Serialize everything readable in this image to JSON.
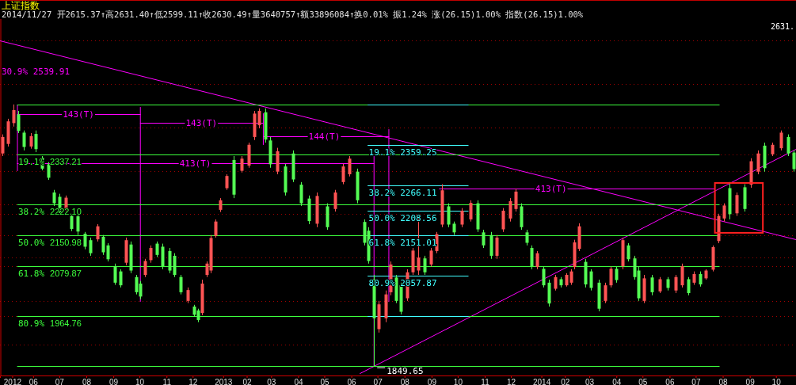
{
  "chart_data": {
    "type": "candlestick",
    "title": "上证指数",
    "subtitle": "2014/11/27 开2615.37↑高2631.40↑低2599.11↑收2630.49↑量3640757↑额33896084↑换0.01% 振1.24% 涨(26.15)1.00% 指数(26.15)1.00%",
    "x": [
      "2012-05-04",
      "2012-05-10",
      "2012-05-16",
      "2012-05-22",
      "2012-05-28",
      "2012-06-05",
      "2012-06-11",
      "2012-06-18",
      "2012-06-25",
      "2012-07-02",
      "2012-07-08",
      "2012-07-15",
      "2012-07-22",
      "2012-07-29",
      "2012-08-06",
      "2012-08-13",
      "2012-08-21",
      "2012-08-27",
      "2012-09-02",
      "2012-09-10",
      "2012-09-16",
      "2012-09-22",
      "2012-09-28",
      "2012-10-04",
      "2012-10-09",
      "2012-10-14",
      "2012-10-21",
      "2012-10-28",
      "2012-11-03",
      "2012-11-11",
      "2012-11-17",
      "2012-11-24",
      "2012-12-02",
      "2012-12-10",
      "2012-12-14",
      "2012-12-19",
      "2012-12-24",
      "2012-12-29",
      "2013-01-03",
      "2013-01-09",
      "2013-01-16",
      "2013-01-24",
      "2013-02-02",
      "2013-02-10",
      "2013-02-17",
      "2013-02-22",
      "2013-03-01",
      "2013-03-07",
      "2013-03-15",
      "2013-03-24",
      "2013-04-02",
      "2013-04-11",
      "2013-04-20",
      "2013-04-29",
      "2013-05-11",
      "2013-05-20",
      "2013-05-29",
      "2013-06-06",
      "2013-06-15",
      "2013-06-23",
      "2013-06-27",
      "2013-07-04",
      "2013-07-09",
      "2013-07-17",
      "2013-07-23",
      "2013-07-29",
      "2013-08-04",
      "2013-08-11",
      "2013-08-17",
      "2013-08-24",
      "2013-08-31",
      "2013-09-07",
      "2013-09-14",
      "2013-09-20",
      "2013-09-27",
      "2013-10-04",
      "2013-10-13",
      "2013-10-23",
      "2013-10-31",
      "2013-11-06",
      "2013-11-15",
      "2013-11-22",
      "2013-11-29",
      "2013-12-07",
      "2013-12-13",
      "2013-12-20",
      "2013-12-26",
      "2014-01-01",
      "2014-01-07",
      "2014-01-14",
      "2014-01-21",
      "2014-01-28",
      "2014-02-03",
      "2014-02-10",
      "2014-02-15",
      "2014-02-19",
      "2014-02-24",
      "2014-03-03",
      "2014-03-10",
      "2014-03-19",
      "2014-03-26",
      "2014-04-01",
      "2014-04-08",
      "2014-04-15",
      "2014-04-21",
      "2014-04-29",
      "2014-05-03",
      "2014-05-10",
      "2014-05-19",
      "2014-05-28",
      "2014-06-06",
      "2014-06-15",
      "2014-06-22",
      "2014-06-29",
      "2014-07-06",
      "2014-07-13",
      "2014-07-19",
      "2014-07-28",
      "2014-08-03",
      "2014-08-09",
      "2014-08-16",
      "2014-08-24",
      "2014-09-02",
      "2014-09-09",
      "2014-09-17",
      "2014-09-25",
      "2014-10-04",
      "2014-10-14",
      "2014-10-22",
      "2014-10-28"
    ],
    "ohlc": [
      [
        2340,
        2384,
        2334,
        2378
      ],
      [
        2362,
        2420,
        2356,
        2414
      ],
      [
        2410,
        2453,
        2402,
        2440
      ],
      [
        2430,
        2438,
        2387,
        2392
      ],
      [
        2388,
        2393,
        2347,
        2355
      ],
      [
        2356,
        2387,
        2351,
        2380
      ],
      [
        2385,
        2393,
        2343,
        2350
      ],
      [
        2330,
        2334,
        2301,
        2305
      ],
      [
        2315,
        2320,
        2279,
        2284
      ],
      [
        2250,
        2256,
        2219,
        2225
      ],
      [
        2240,
        2247,
        2197,
        2203
      ],
      [
        2210,
        2243,
        2205,
        2238
      ],
      [
        2196,
        2201,
        2161,
        2166
      ],
      [
        2195,
        2201,
        2152,
        2160
      ],
      [
        2155,
        2159,
        2119,
        2125
      ],
      [
        2140,
        2146,
        2104,
        2110
      ],
      [
        2142,
        2177,
        2137,
        2172
      ],
      [
        2148,
        2152,
        2106,
        2112
      ],
      [
        2128,
        2133,
        2091,
        2096
      ],
      [
        2080,
        2086,
        2037,
        2042
      ],
      [
        2068,
        2073,
        2031,
        2036
      ],
      [
        2088,
        2146,
        2082,
        2140
      ],
      [
        2130,
        2137,
        2064,
        2070
      ],
      [
        2055,
        2060,
        2015,
        2020
      ],
      [
        2040,
        2046,
        2004,
        2010
      ],
      [
        2060,
        2097,
        2055,
        2092
      ],
      [
        2094,
        2128,
        2088,
        2122
      ],
      [
        2132,
        2137,
        2101,
        2106
      ],
      [
        2125,
        2132,
        2073,
        2080
      ],
      [
        2115,
        2122,
        2064,
        2070
      ],
      [
        2104,
        2110,
        2055,
        2060
      ],
      [
        2055,
        2060,
        2015,
        2020
      ],
      [
        2000,
        2031,
        1995,
        2025
      ],
      [
        1987,
        1991,
        1964,
        1968
      ],
      [
        1978,
        1982,
        1951,
        1956
      ],
      [
        1972,
        2049,
        1967,
        2040
      ],
      [
        2060,
        2091,
        2055,
        2086
      ],
      [
        2070,
        2152,
        2064,
        2145
      ],
      [
        2150,
        2188,
        2146,
        2183
      ],
      [
        2210,
        2237,
        2205,
        2232
      ],
      [
        2260,
        2292,
        2256,
        2288
      ],
      [
        2325,
        2334,
        2237,
        2245
      ],
      [
        2300,
        2334,
        2296,
        2328
      ],
      [
        2312,
        2365,
        2307,
        2360
      ],
      [
        2378,
        2438,
        2371,
        2432
      ],
      [
        2405,
        2444,
        2398,
        2438
      ],
      [
        2435,
        2444,
        2365,
        2372
      ],
      [
        2370,
        2378,
        2307,
        2315
      ],
      [
        2298,
        2353,
        2292,
        2345
      ],
      [
        2310,
        2316,
        2243,
        2250
      ],
      [
        2340,
        2347,
        2274,
        2280
      ],
      [
        2268,
        2274,
        2219,
        2225
      ],
      [
        2236,
        2243,
        2177,
        2184
      ],
      [
        2178,
        2250,
        2170,
        2242
      ],
      [
        2218,
        2225,
        2164,
        2170
      ],
      [
        2212,
        2256,
        2206,
        2250
      ],
      [
        2274,
        2316,
        2269,
        2310
      ],
      [
        2292,
        2334,
        2287,
        2328
      ],
      [
        2298,
        2305,
        2225,
        2232
      ],
      [
        2182,
        2188,
        2128,
        2134
      ],
      [
        2162,
        2170,
        2086,
        2092
      ],
      [
        2050,
        2060,
        1849.65,
        1960
      ],
      [
        1935,
        2000,
        1927,
        1992
      ],
      [
        1960,
        2024,
        1951,
        2015
      ],
      [
        2020,
        2091,
        2013,
        2084
      ],
      [
        2054,
        2060,
        1995,
        2000
      ],
      [
        2036,
        2042,
        1969,
        1975
      ],
      [
        2006,
        2073,
        2000,
        2066
      ],
      [
        2066,
        2122,
        2060,
        2116
      ],
      [
        2070,
        2196,
        2060,
        2100
      ],
      [
        2098,
        2104,
        2060,
        2066
      ],
      [
        2084,
        2122,
        2079,
        2116
      ],
      [
        2115,
        2159,
        2110,
        2154
      ],
      [
        2176,
        2269,
        2170,
        2255
      ],
      [
        2218,
        2225,
        2170,
        2176
      ],
      [
        2178,
        2183,
        2152,
        2158
      ],
      [
        2176,
        2214,
        2170,
        2208
      ],
      [
        2188,
        2232,
        2183,
        2226
      ],
      [
        2225,
        2232,
        2159,
        2165
      ],
      [
        2158,
        2164,
        2122,
        2128
      ],
      [
        2152,
        2159,
        2097,
        2104
      ],
      [
        2104,
        2152,
        2097,
        2146
      ],
      [
        2165,
        2214,
        2159,
        2208
      ],
      [
        2190,
        2237,
        2183,
        2230
      ],
      [
        2212,
        2259,
        2206,
        2252
      ],
      [
        2218,
        2225,
        2164,
        2170
      ],
      [
        2158,
        2164,
        2128,
        2134
      ],
      [
        2122,
        2128,
        2073,
        2080
      ],
      [
        2078,
        2115,
        2073,
        2110
      ],
      [
        2074,
        2079,
        2031,
        2036
      ],
      [
        2042,
        2049,
        1987,
        1994
      ],
      [
        2028,
        2060,
        2024,
        2055
      ],
      [
        2050,
        2055,
        2031,
        2036
      ],
      [
        2036,
        2064,
        2033,
        2060
      ],
      [
        2042,
        2073,
        2037,
        2068
      ],
      [
        2078,
        2141,
        2073,
        2135
      ],
      [
        2120,
        2179,
        2115,
        2172
      ],
      [
        2090,
        2097,
        2031,
        2038
      ],
      [
        2068,
        2073,
        2024,
        2030
      ],
      [
        2042,
        2049,
        1976,
        1982
      ],
      [
        2000,
        2042,
        1995,
        2036
      ],
      [
        2036,
        2079,
        2031,
        2074
      ],
      [
        2074,
        2079,
        2042,
        2048
      ],
      [
        2080,
        2146,
        2073,
        2140
      ],
      [
        2128,
        2133,
        2091,
        2096
      ],
      [
        2098,
        2104,
        2049,
        2055
      ],
      [
        2070,
        2079,
        2000,
        2006
      ],
      [
        2000,
        2060,
        1995,
        2052
      ],
      [
        2054,
        2060,
        2013,
        2020
      ],
      [
        2022,
        2055,
        2018,
        2050
      ],
      [
        2050,
        2055,
        2024,
        2030
      ],
      [
        2024,
        2060,
        2018,
        2055
      ],
      [
        2036,
        2086,
        2031,
        2080
      ],
      [
        2050,
        2055,
        2013,
        2018
      ],
      [
        2042,
        2068,
        2037,
        2062
      ],
      [
        2062,
        2068,
        2033,
        2038
      ],
      [
        2052,
        2073,
        2049,
        2070
      ],
      [
        2072,
        2128,
        2068,
        2124
      ],
      [
        2138,
        2201,
        2133,
        2196
      ],
      [
        2190,
        2225,
        2183,
        2220
      ],
      [
        2260,
        2274,
        2188,
        2200
      ],
      [
        2202,
        2250,
        2196,
        2244
      ],
      [
        2262,
        2269,
        2206,
        2212
      ],
      [
        2268,
        2329,
        2261,
        2322
      ],
      [
        2298,
        2347,
        2292,
        2340
      ],
      [
        2358,
        2365,
        2298,
        2306
      ],
      [
        2338,
        2365,
        2334,
        2360
      ],
      [
        2352,
        2393,
        2347,
        2388
      ],
      [
        2378,
        2384,
        2334,
        2340
      ],
      [
        2342,
        2347,
        2298,
        2304
      ]
    ],
    "series": [
      {
        "type": "line",
        "color": "#ff00ff",
        "x": [
          "2012-05-01",
          "2014-10-31"
        ],
        "values": [
          2601,
          2143
        ]
      },
      {
        "type": "line",
        "color": "#ff00ff",
        "x": [
          "2013-06-18",
          "2014-10-31"
        ],
        "values": [
          1833,
          2351
        ]
      },
      {
        "type": "line",
        "color": "#ff00ff",
        "x": [
          "2012-05-21",
          "2012-10-09"
        ],
        "values": [
          2430,
          2430
        ]
      },
      {
        "type": "line",
        "color": "#ff00ff",
        "x": [
          "2012-10-09",
          "2013-02-27"
        ],
        "values": [
          2410,
          2410
        ]
      },
      {
        "type": "line",
        "color": "#ff00ff",
        "x": [
          "2013-02-27",
          "2013-07-21"
        ],
        "values": [
          2379,
          2379
        ]
      },
      {
        "type": "line",
        "color": "#ff00ff",
        "x": [
          "2012-05-21",
          "2013-07-04"
        ],
        "values": [
          2318,
          2318
        ]
      },
      {
        "type": "line",
        "color": "#ff00ff",
        "x": [
          "2013-09-17",
          "2014-07-30"
        ],
        "values": [
          2259,
          2259
        ]
      },
      {
        "type": "line",
        "color": "#ff00ff",
        "x": [
          "2012-05-21",
          "2012-05-21"
        ],
        "values": [
          2453,
          2301
        ]
      },
      {
        "type": "line",
        "color": "#ff00ff",
        "x": [
          "2012-10-09",
          "2012-10-09"
        ],
        "values": [
          2447,
          2000
        ]
      },
      {
        "type": "line",
        "color": "#ff00ff",
        "x": [
          "2013-02-27",
          "2013-02-27"
        ],
        "values": [
          2433,
          2362
        ]
      },
      {
        "type": "line",
        "color": "#ff00ff",
        "x": [
          "2013-07-04",
          "2013-07-04"
        ],
        "values": [
          2334,
          1849.65
        ]
      },
      {
        "type": "line",
        "color": "#ff00ff",
        "x": [
          "2013-07-21",
          "2013-07-21"
        ],
        "values": [
          2396,
          2000
        ]
      },
      {
        "type": "line",
        "color": "#3cff3c",
        "x": [
          "2012-05-21",
          "2014-08-04"
        ],
        "values": [
          2452,
          2452
        ]
      },
      {
        "type": "line",
        "color": "#3cff3c",
        "x": [
          "2012-05-21",
          "2014-08-04"
        ],
        "values": [
          2337.21,
          2337.21
        ]
      },
      {
        "type": "line",
        "color": "#3cff3c",
        "x": [
          "2012-05-21",
          "2014-08-04"
        ],
        "values": [
          2222.1,
          2222.1
        ]
      },
      {
        "type": "line",
        "color": "#3cff3c",
        "x": [
          "2012-05-21",
          "2014-08-04"
        ],
        "values": [
          2150.98,
          2150.98
        ]
      },
      {
        "type": "line",
        "color": "#3cff3c",
        "x": [
          "2012-05-21",
          "2014-08-04"
        ],
        "values": [
          2079.87,
          2079.87
        ]
      },
      {
        "type": "line",
        "color": "#3cff3c",
        "x": [
          "2012-05-21",
          "2014-08-04"
        ],
        "values": [
          1964.76,
          1964.76
        ]
      },
      {
        "type": "line",
        "color": "#3cff3c",
        "x": [
          "2012-05-21",
          "2014-08-04"
        ],
        "values": [
          1849.65,
          1849.65
        ]
      },
      {
        "type": "line",
        "color": "#40ffff",
        "x": [
          "2013-06-27",
          "2013-10-20"
        ],
        "values": [
          2452,
          2452
        ]
      },
      {
        "type": "line",
        "color": "#40ffff",
        "x": [
          "2013-06-27",
          "2013-10-20"
        ],
        "values": [
          2359.25,
          2359.25
        ]
      },
      {
        "type": "line",
        "color": "#40ffff",
        "x": [
          "2013-06-27",
          "2013-10-20"
        ],
        "values": [
          2266.11,
          2266.11
        ]
      },
      {
        "type": "line",
        "color": "#40ffff",
        "x": [
          "2013-06-27",
          "2013-10-20"
        ],
        "values": [
          2208.56,
          2208.56
        ]
      },
      {
        "type": "line",
        "color": "#40ffff",
        "x": [
          "2013-06-27",
          "2013-10-20"
        ],
        "values": [
          2151.01,
          2151.01
        ]
      },
      {
        "type": "line",
        "color": "#40ffff",
        "x": [
          "2013-06-27",
          "2013-10-20"
        ],
        "values": [
          2057.87,
          2057.87
        ]
      },
      {
        "type": "line",
        "color": "#40ffff",
        "x": [
          "2013-06-27",
          "2013-10-20"
        ],
        "values": [
          1965,
          1965
        ]
      }
    ],
    "annotations": [
      "2631.",
      "30.9% 2539.91",
      {
        "text": "143(T)",
        "x": "2012-07-30",
        "y": 2430
      },
      {
        "text": "143(T)",
        "x": "2012-12-18",
        "y": 2410
      },
      {
        "text": "144(T)",
        "x": "2013-05-08",
        "y": 2379
      },
      {
        "text": "413(T)",
        "x": "2012-12-11",
        "y": 2318
      },
      {
        "text": "413(T)",
        "x": "2014-01-23",
        "y": 2259
      },
      {
        "text": "80.9%",
        "x": "2012-05-21",
        "y": 1964.76
      },
      {
        "text": "61.8%",
        "x": "2012-05-21",
        "y": 2079.87
      },
      {
        "text": "50.0%",
        "x": "2012-05-21",
        "y": 2150.98
      },
      {
        "text": "38.2%",
        "x": "2012-05-21",
        "y": 2222.1
      },
      {
        "text": "19.1%",
        "x": "2012-05-21",
        "y": 2337.21
      },
      {
        "text": "19.1% 2359.25",
        "x": "2013-06-27",
        "y": 2359.25
      },
      {
        "text": "38.2% 2266.11",
        "x": "2013-06-27",
        "y": 2266.11
      },
      {
        "text": "50.0% 2208.56",
        "x": "2013-06-27",
        "y": 2208.56
      },
      {
        "text": "61.8% 2151.01",
        "x": "2013-06-27",
        "y": 2151.01
      },
      {
        "text": "80.9% 2057.87",
        "x": "2013-06-27",
        "y": 2057.87
      },
      {
        "text": "1849.65",
        "x": "2013-07-04",
        "y": 1849.65
      }
    ],
    "xlim": [
      "2012-05-01",
      "2014-10-31"
    ],
    "xticks": [
      {
        "value": "2012-05-15",
        "label": "2012"
      },
      {
        "value": "2012-06-08",
        "label": "06"
      },
      {
        "value": "2012-07-08",
        "label": "07"
      },
      {
        "value": "2012-08-08",
        "label": "08"
      },
      {
        "value": "2012-09-08",
        "label": "09"
      },
      {
        "value": "2012-10-08",
        "label": "10"
      },
      {
        "value": "2012-11-08",
        "label": "11"
      },
      {
        "value": "2012-12-08",
        "label": "12"
      },
      {
        "value": "2013-01-12",
        "label": "2013"
      },
      {
        "value": "2013-02-08",
        "label": "02"
      },
      {
        "value": "2013-03-08",
        "label": "03"
      },
      {
        "value": "2013-04-08",
        "label": "04"
      },
      {
        "value": "2013-05-08",
        "label": "05"
      },
      {
        "value": "2013-06-08",
        "label": "06"
      },
      {
        "value": "2013-07-08",
        "label": "07"
      },
      {
        "value": "2013-08-08",
        "label": "08"
      },
      {
        "value": "2013-09-08",
        "label": "09"
      },
      {
        "value": "2013-10-08",
        "label": "10"
      },
      {
        "value": "2013-11-08",
        "label": "11"
      },
      {
        "value": "2013-12-08",
        "label": "12"
      },
      {
        "value": "2014-01-12",
        "label": "2014"
      },
      {
        "value": "2014-02-08",
        "label": "02"
      },
      {
        "value": "2014-03-08",
        "label": "03"
      },
      {
        "value": "2014-04-08",
        "label": "04"
      },
      {
        "value": "2014-05-08",
        "label": "05"
      },
      {
        "value": "2014-06-08",
        "label": "06"
      },
      {
        "value": "2014-07-08",
        "label": "07"
      },
      {
        "value": "2014-08-08",
        "label": "08"
      },
      {
        "value": "2014-09-08",
        "label": "09"
      },
      {
        "value": "2014-10-08",
        "label": "10"
      }
    ],
    "ylim": [
      1828,
      2650
    ],
    "yticks": [
      {
        "value": 1900,
        "label": null
      },
      1964.76,
      {
        "value": 2000,
        "label": null
      },
      2079.87,
      {
        "value": 2100,
        "label": null
      },
      2150.98,
      {
        "value": 2200,
        "label": null
      },
      {
        "value": 2222.1,
        "label": "2222.10"
      },
      {
        "value": 2300,
        "label": null
      },
      2337.21,
      {
        "value": 2400,
        "label": null
      },
      {
        "value": 2500,
        "label": null
      },
      {
        "value": 2600,
        "label": null
      }
    ],
    "grid": "y"
  }
}
